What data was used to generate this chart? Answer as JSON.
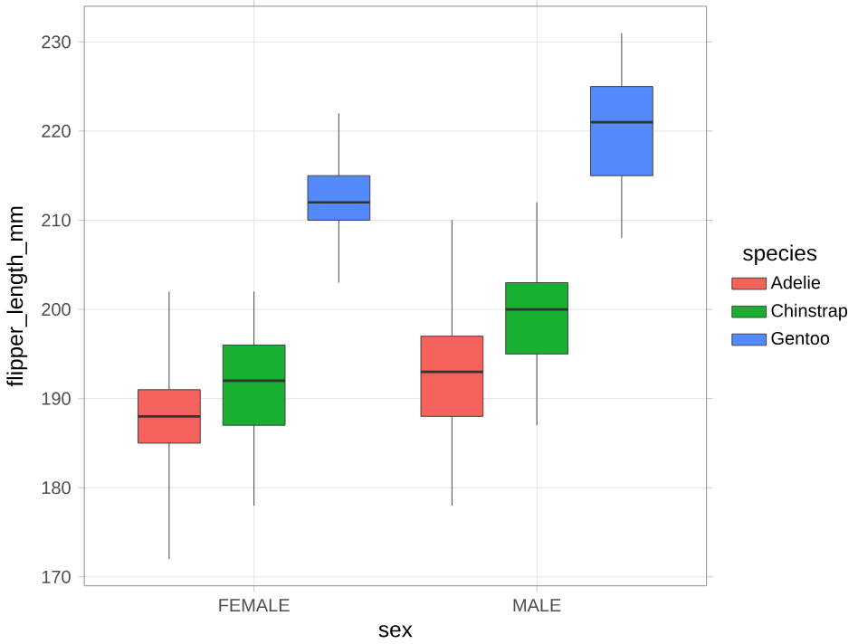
{
  "chart_data": {
    "type": "box",
    "xlabel": "sex",
    "ylabel": "flipper_length_mm",
    "legend_title": "species",
    "categories": [
      "FEMALE",
      "MALE"
    ],
    "series": [
      {
        "name": "Adelie",
        "color": "#f5625b",
        "boxes": [
          {
            "low": 172,
            "q1": 185,
            "median": 188,
            "q3": 191,
            "high": 202
          },
          {
            "low": 178,
            "q1": 188,
            "median": 193,
            "q3": 197,
            "high": 210
          }
        ]
      },
      {
        "name": "Chinstrap",
        "color": "#1aaf30",
        "boxes": [
          {
            "low": 178,
            "q1": 187,
            "median": 192,
            "q3": 196,
            "high": 202
          },
          {
            "low": 187,
            "q1": 195,
            "median": 200,
            "q3": 203,
            "high": 212
          }
        ]
      },
      {
        "name": "Gentoo",
        "color": "#5389fb",
        "boxes": [
          {
            "low": 203,
            "q1": 210,
            "median": 212,
            "q3": 215,
            "high": 222
          },
          {
            "low": 208,
            "q1": 215,
            "median": 221,
            "q3": 225,
            "high": 231
          }
        ]
      }
    ],
    "ylim": [
      169,
      234
    ],
    "yticks": [
      170,
      180,
      190,
      200,
      210,
      220,
      230
    ],
    "grid": true,
    "legend": "right"
  }
}
